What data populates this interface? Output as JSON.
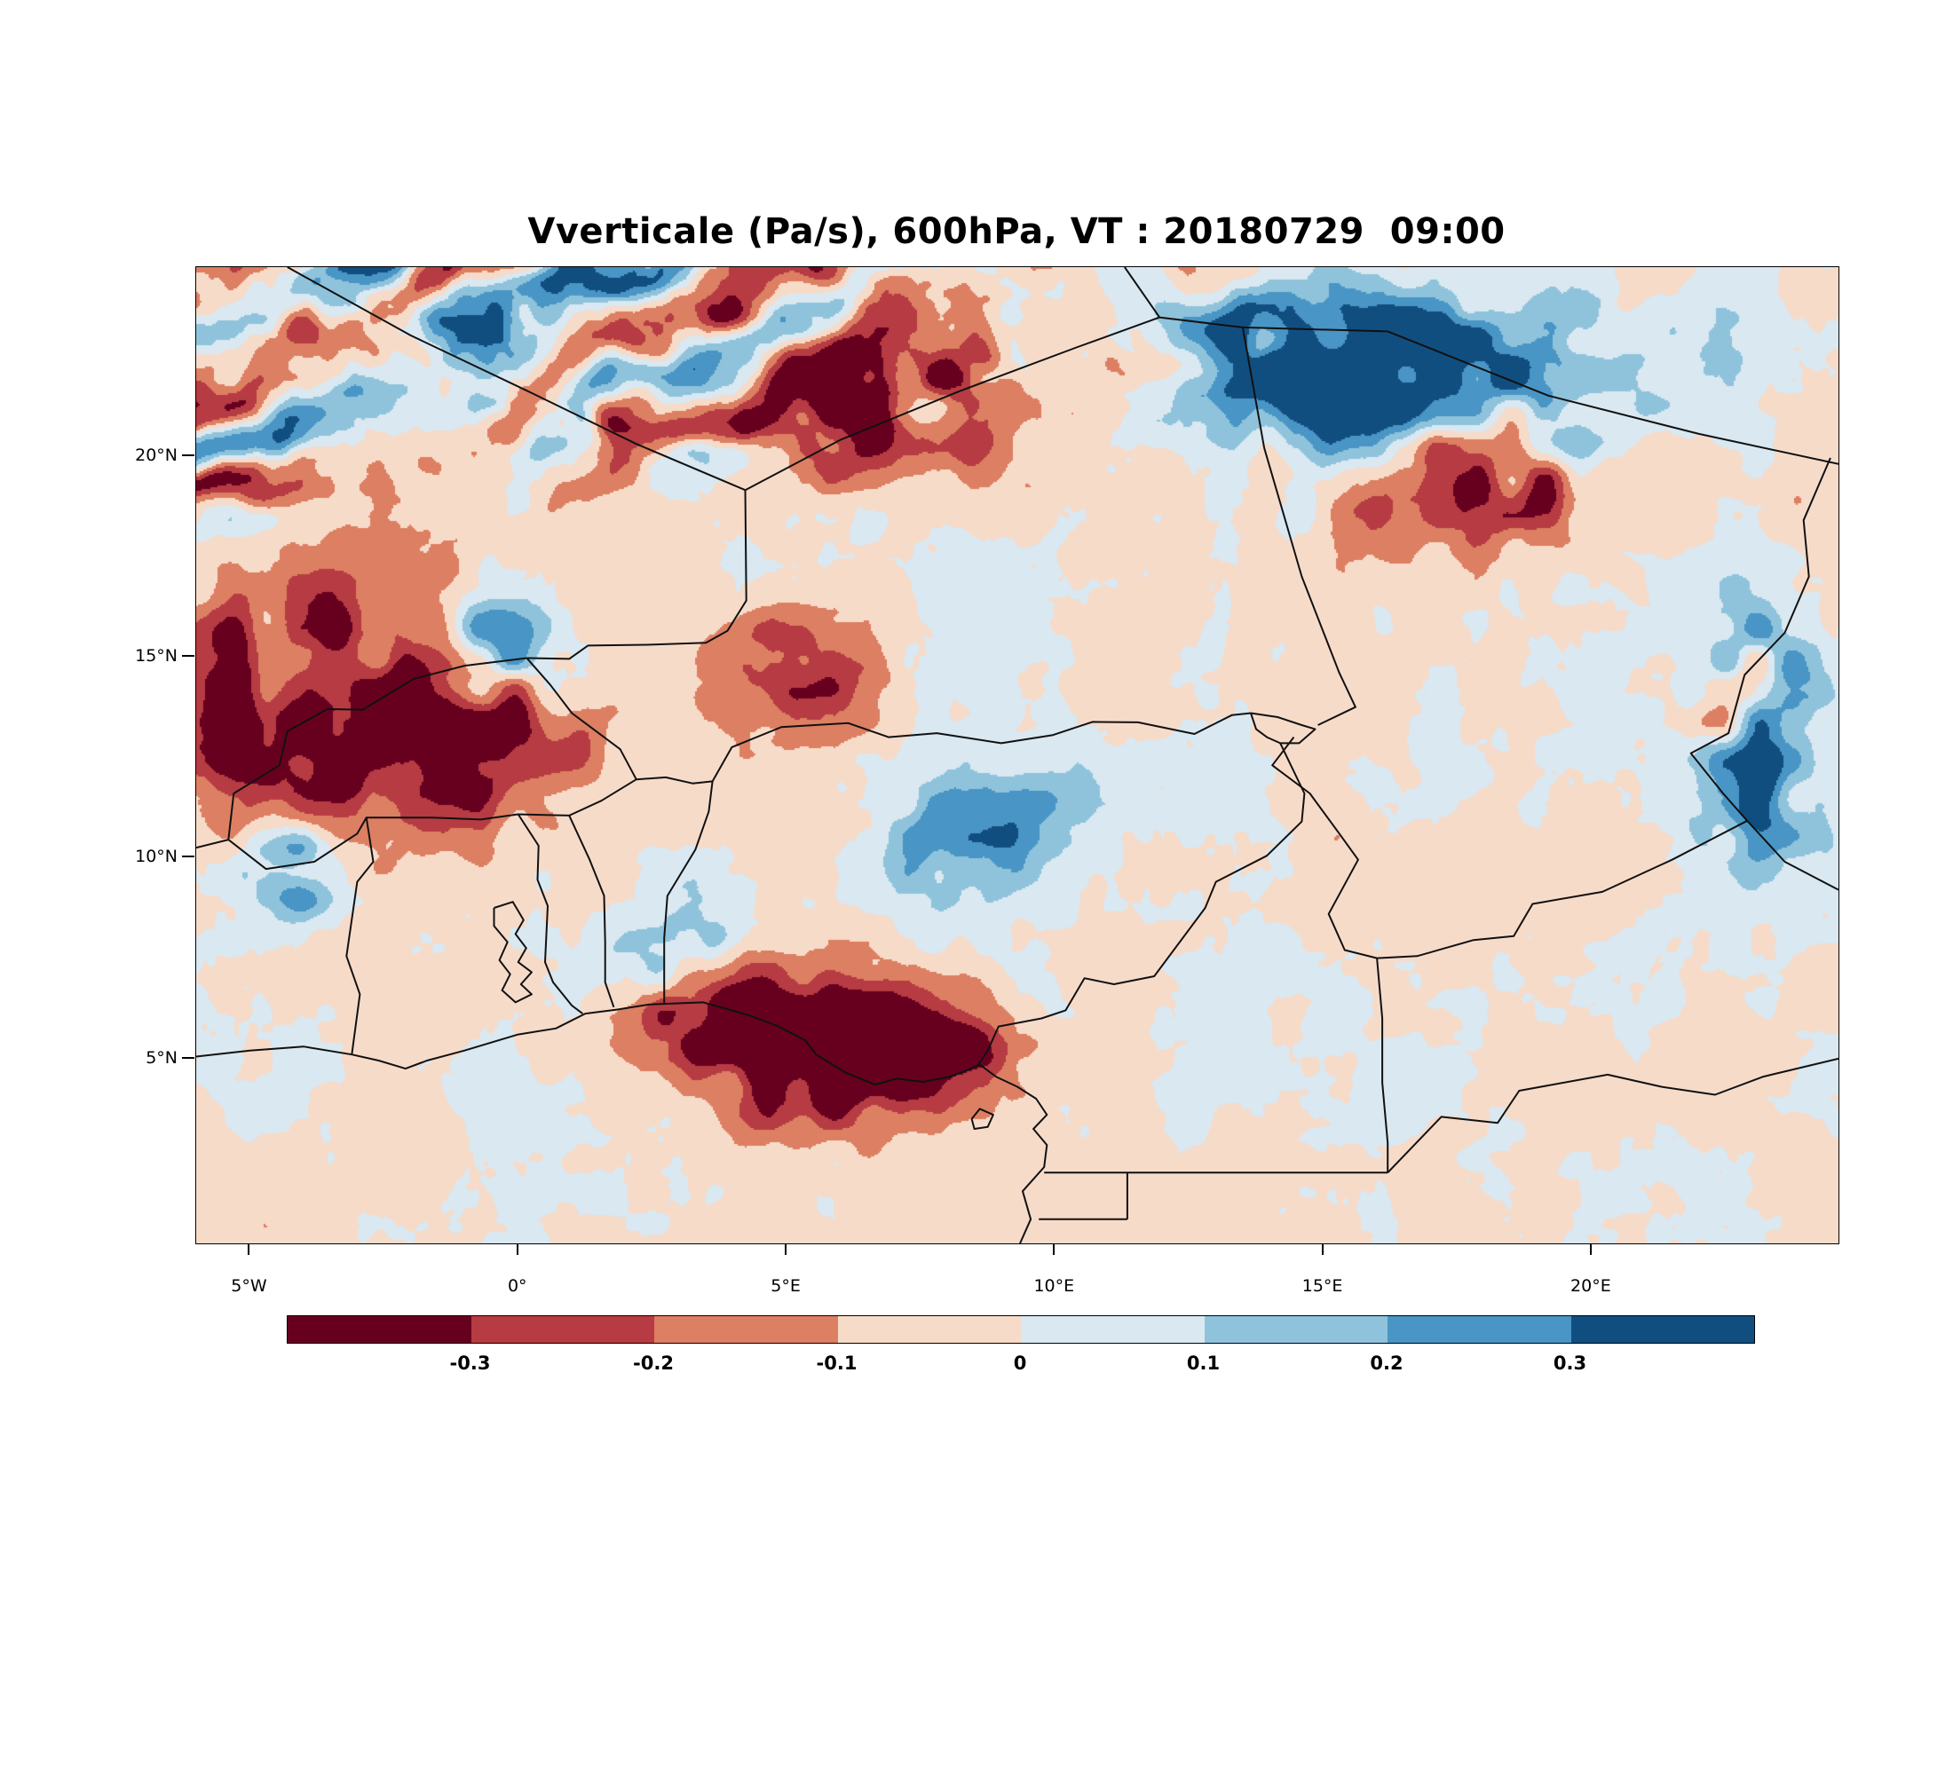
{
  "title": "Vverticale (Pa/s), 600hPa, VT : 20180729  09:00",
  "chart_data": {
    "type": "heatmap",
    "title": "Vverticale (Pa/s), 600hPa, VT : 20180729  09:00",
    "variable": "Vverticale",
    "units": "Pa/s",
    "pressure_level": "600hPa",
    "valid_time": "20180729 09:00",
    "lon_range": [
      -6,
      24.6
    ],
    "lat_range": [
      0.4,
      24.7
    ],
    "grid_on": false,
    "legend_position": "bottom-colorbar",
    "y_ticks": [
      {
        "label": "20°N",
        "value": 20
      },
      {
        "label": "15°N",
        "value": 15
      },
      {
        "label": "10°N",
        "value": 10
      },
      {
        "label": "5°N",
        "value": 5
      }
    ],
    "x_ticks": [
      {
        "label": "5°W",
        "value": -5
      },
      {
        "label": "0°",
        "value": 0
      },
      {
        "label": "5°E",
        "value": 5
      },
      {
        "label": "10°E",
        "value": 10
      },
      {
        "label": "15°E",
        "value": 15
      },
      {
        "label": "20°E",
        "value": 20
      }
    ],
    "colorbar": {
      "levels": [
        -0.3,
        -0.2,
        -0.1,
        0,
        0.1,
        0.2,
        0.3
      ],
      "tick_labels": [
        "-0.3",
        "-0.2",
        "-0.1",
        "0",
        "0.1",
        "0.2",
        "0.3"
      ],
      "colors": [
        "#67001f",
        "#b63b42",
        "#dd7f62",
        "#f7dbc9",
        "#d9e8f1",
        "#8fc3dc",
        "#4995c5",
        "#114e80"
      ]
    },
    "field_summary": [
      "Intense alternating ascent/descent streaks (dark red and navy bands, |w| > 0.3 Pa/s) oriented SW-NE across the northern band above ~18N, strongest west of 10E",
      "Strong dark-red (descent < -0.3 Pa/s) cluster on the Gulf of Guinea coast near 5-7E, 4-6N",
      "Navy/red streak couplet near 16-18E, 20-22N",
      "Mixed blue/red pocket near the eastern edge around 23E, 12-14N",
      "Elsewhere weak values alternating between pale pink (-0.1..0) and pale blue (0..0.1)"
    ],
    "render_features": [
      {
        "x": 707,
        "y": 886,
        "sx": 115,
        "sy": 52,
        "amp": -0.62
      },
      {
        "x": 610,
        "y": 835,
        "sx": 70,
        "sy": 45,
        "amp": -0.35
      },
      {
        "x": 800,
        "y": 872,
        "sx": 55,
        "sy": 35,
        "amp": -0.42
      },
      {
        "x": 1390,
        "y": 140,
        "sx": 150,
        "sy": 75,
        "amp": 0.55
      },
      {
        "x": 1440,
        "y": 235,
        "sx": 125,
        "sy": 55,
        "amp": -0.5
      },
      {
        "x": 1265,
        "y": 105,
        "sx": 90,
        "sy": 55,
        "amp": 0.5
      },
      {
        "x": 1760,
        "y": 520,
        "sx": 55,
        "sy": 95,
        "amp": 0.5
      },
      {
        "x": 1722,
        "y": 468,
        "sx": 45,
        "sy": 40,
        "amp": -0.45
      },
      {
        "x": 130,
        "y": 480,
        "sx": 150,
        "sy": 95,
        "amp": -0.48
      },
      {
        "x": 250,
        "y": 555,
        "sx": 130,
        "sy": 55,
        "amp": -0.4
      },
      {
        "x": 105,
        "y": 680,
        "sx": 45,
        "sy": 38,
        "amp": 0.5
      },
      {
        "x": 320,
        "y": 420,
        "sx": 60,
        "sy": 45,
        "amp": 0.42
      },
      {
        "x": 900,
        "y": 640,
        "sx": 90,
        "sy": 60,
        "amp": 0.3
      },
      {
        "x": 680,
        "y": 455,
        "sx": 65,
        "sy": 48,
        "amp": -0.36
      },
      {
        "x": 770,
        "y": 135,
        "sx": 120,
        "sy": 70,
        "amp": -0.45
      },
      {
        "x": 540,
        "y": 760,
        "sx": 60,
        "sy": 40,
        "amp": 0.34
      }
    ]
  }
}
